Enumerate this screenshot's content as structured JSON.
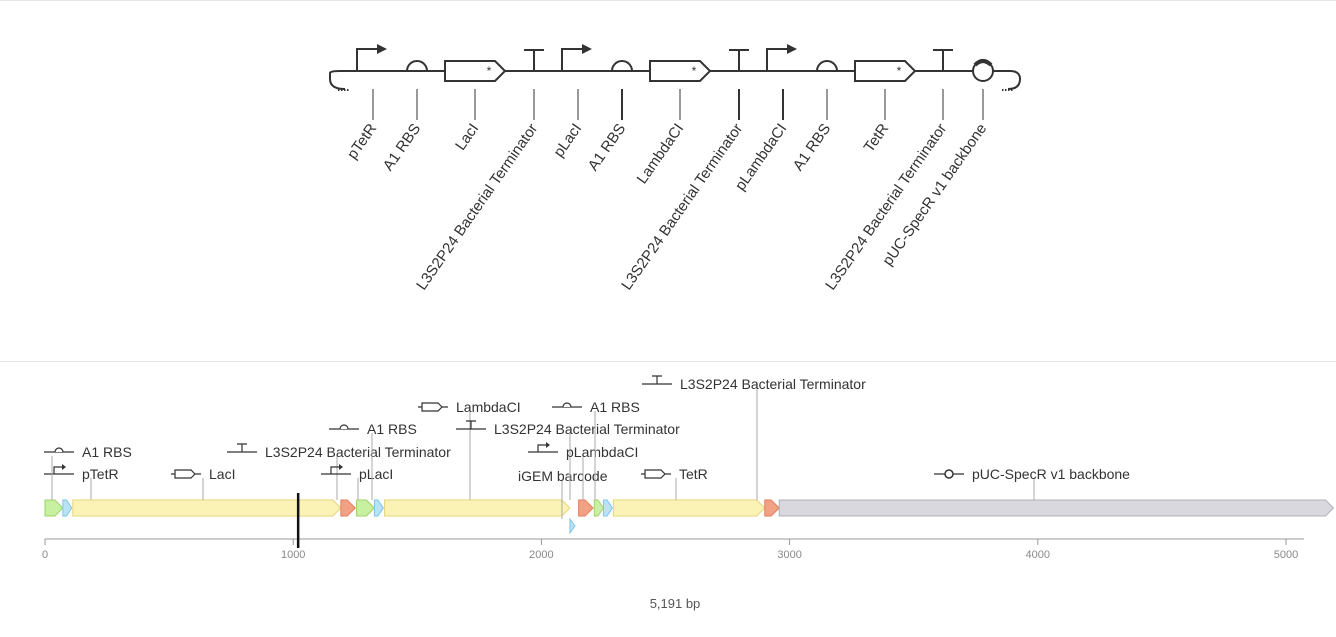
{
  "sbol": {
    "parts": [
      {
        "type": "promoter",
        "label": "pTetR"
      },
      {
        "type": "rbs",
        "label": "A1 RBS"
      },
      {
        "type": "cds",
        "label": "LacI"
      },
      {
        "type": "terminator",
        "label": "L3S2P24 Bacterial Terminator"
      },
      {
        "type": "promoter",
        "label": "pLacI"
      },
      {
        "type": "rbs",
        "label": "A1 RBS"
      },
      {
        "type": "cds",
        "label": "LambdaCI"
      },
      {
        "type": "terminator",
        "label": "L3S2P24 Bacterial Terminator"
      },
      {
        "type": "promoter",
        "label": "pLambdaCI"
      },
      {
        "type": "rbs",
        "label": "A1 RBS"
      },
      {
        "type": "cds",
        "label": "TetR"
      },
      {
        "type": "terminator",
        "label": "L3S2P24 Bacterial Terminator"
      },
      {
        "type": "origin",
        "label": "pUC-SpecR v1 backbone"
      }
    ]
  },
  "linear_map": {
    "total_bp": 5191,
    "length_label": "5,191 bp",
    "ticks": [
      0,
      1000,
      2000,
      3000,
      4000,
      5000
    ],
    "cursor_bp": 1020,
    "colors": {
      "promoter": "#c7f0a0",
      "rbs": "#b8e3f5",
      "cds": "#fbf2b5",
      "terminator": "#f2a184",
      "backbone": "#d8d8de",
      "barcode": "#b8e3f5"
    },
    "features": [
      {
        "label": "pTetR",
        "type": "promoter",
        "start": 0,
        "end": 72,
        "icon": "promoter"
      },
      {
        "label": "A1 RBS",
        "type": "rbs",
        "start": 72,
        "end": 108,
        "icon": "rbs"
      },
      {
        "label": "LacI",
        "type": "cds",
        "start": 112,
        "end": 1192,
        "icon": "cds"
      },
      {
        "label": "L3S2P24 Bacterial Terminator",
        "type": "terminator",
        "start": 1192,
        "end": 1250,
        "icon": "terminator"
      },
      {
        "label": "pLacI",
        "type": "promoter",
        "start": 1255,
        "end": 1327,
        "icon": "promoter"
      },
      {
        "label": "A1 RBS",
        "type": "rbs",
        "start": 1327,
        "end": 1363,
        "icon": "rbs"
      },
      {
        "label": "LambdaCI",
        "type": "cds",
        "start": 1368,
        "end": 2115,
        "icon": "cds"
      },
      {
        "label": "iGEM barcode",
        "type": "barcode",
        "start": 2115,
        "end": 2150,
        "icon": "none"
      },
      {
        "label": "L3S2P24 Bacterial Terminator",
        "type": "terminator",
        "start": 2150,
        "end": 2208,
        "icon": "terminator"
      },
      {
        "label": "pLambdaCI",
        "type": "promoter",
        "start": 2213,
        "end": 2250,
        "icon": "promoter"
      },
      {
        "label": "A1 RBS",
        "type": "rbs",
        "start": 2250,
        "end": 2286,
        "icon": "rbs"
      },
      {
        "label": "TetR",
        "type": "cds",
        "start": 2290,
        "end": 2900,
        "icon": "cds"
      },
      {
        "label": "L3S2P24 Bacterial Terminator",
        "type": "terminator",
        "start": 2900,
        "end": 2958,
        "icon": "terminator"
      },
      {
        "label": "pUC-SpecR v1 backbone",
        "type": "backbone",
        "start": 2958,
        "end": 5191,
        "icon": "origin"
      }
    ]
  }
}
